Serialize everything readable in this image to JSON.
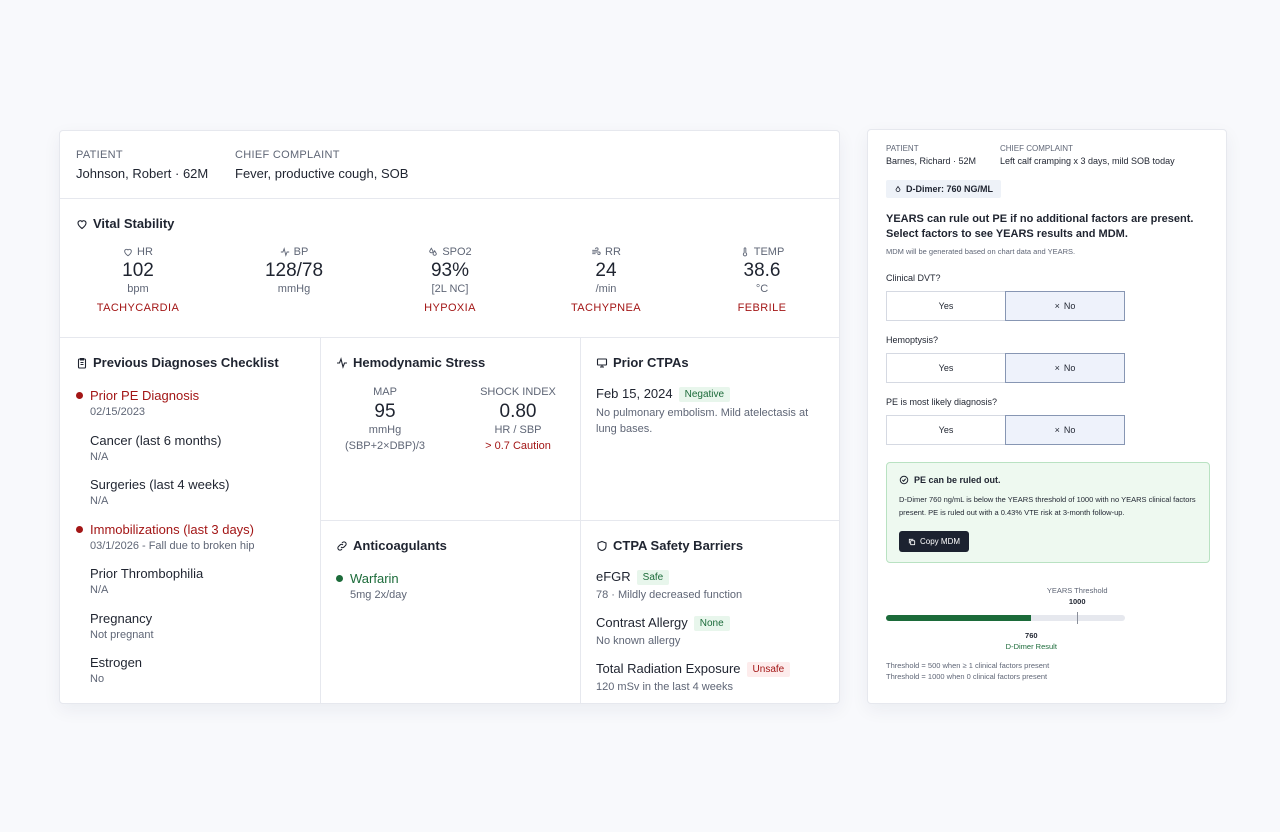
{
  "left": {
    "header": {
      "patient_label": "PATIENT",
      "patient_value": "Johnson, Robert · 62M",
      "complaint_label": "CHIEF COMPLAINT",
      "complaint_value": "Fever, productive cough, SOB"
    },
    "vitals": {
      "title": "Vital Stability",
      "items": [
        {
          "label": "HR",
          "value": "102",
          "unit": "bpm",
          "status": "TACHYCARDIA",
          "icon": "heart-icon"
        },
        {
          "label": "BP",
          "value": "128/78",
          "unit": "mmHg",
          "status": "",
          "icon": "pulse-icon"
        },
        {
          "label": "SPO2",
          "value": "93%",
          "unit": "[2L NC]",
          "status": "HYPOXIA",
          "icon": "droplets-icon"
        },
        {
          "label": "RR",
          "value": "24",
          "unit": "/min",
          "status": "TACHYPNEA",
          "icon": "wind-icon"
        },
        {
          "label": "TEMP",
          "value": "38.6",
          "unit": "°C",
          "status": "FEBRILE",
          "icon": "thermometer-icon"
        }
      ]
    },
    "checklist": {
      "title": "Previous Diagnoses Checklist",
      "items": [
        {
          "title": "Prior PE Diagnosis",
          "sub": "02/15/2023",
          "flag": true
        },
        {
          "title": "Cancer (last 6 months)",
          "sub": "N/A",
          "flag": false
        },
        {
          "title": "Surgeries (last 4 weeks)",
          "sub": "N/A",
          "flag": false
        },
        {
          "title": "Immobilizations (last 3 days)",
          "sub": "03/1/2026 - Fall due to broken hip",
          "flag": true
        },
        {
          "title": "Prior Thrombophilia",
          "sub": "N/A",
          "flag": false
        },
        {
          "title": "Pregnancy",
          "sub": "Not pregnant",
          "flag": false
        },
        {
          "title": "Estrogen",
          "sub": "No",
          "flag": false
        }
      ]
    },
    "hemo": {
      "title": "Hemodynamic Stress",
      "map_label": "MAP",
      "map_value": "95",
      "map_unit": "mmHg",
      "map_formula": "(SBP+2×DBP)/3",
      "si_label": "SHOCK INDEX",
      "si_value": "0.80",
      "si_unit": "HR / SBP",
      "si_caution": "> 0.7 Caution"
    },
    "ctpa": {
      "title": "Prior CTPAs",
      "date": "Feb 15, 2024",
      "badge": "Negative",
      "text": "No pulmonary embolism. Mild atelectasis at lung bases."
    },
    "anticoag": {
      "title": "Anticoagulants",
      "drug": "Warfarin",
      "dose": "5mg 2x/day"
    },
    "barriers": {
      "title": "CTPA Safety Barriers",
      "items": [
        {
          "title": "eFGR",
          "badge": "Safe",
          "sub": "78 · Mildly decreased function"
        },
        {
          "title": "Contrast Allergy",
          "badge": "None",
          "sub": "No known allergy"
        },
        {
          "title": "Total Radiation Exposure",
          "badge": "Unsafe",
          "sub": "120 mSv in the last 4 weeks"
        }
      ]
    }
  },
  "right": {
    "patient_label": "PATIENT",
    "patient_value": "Barnes, Richard · 52M",
    "complaint_label": "CHIEF COMPLAINT",
    "complaint_value": "Left calf cramping x 3 days, mild SOB today",
    "ddimer_chip": "D-Dimer: 760 NG/ML",
    "headline": "YEARS can rule out PE if no additional factors are present. Select factors to see YEARS results and MDM.",
    "subnote": "MDM will be generated based on chart data and YEARS.",
    "questions": [
      {
        "label": "Clinical DVT?",
        "yes": "Yes",
        "no": "No",
        "selected": "No"
      },
      {
        "label": "Hemoptysis?",
        "yes": "Yes",
        "no": "No",
        "selected": "No"
      },
      {
        "label": "PE is most likely diagnosis?",
        "yes": "Yes",
        "no": "No",
        "selected": "No"
      }
    ],
    "result": {
      "title": "PE can be ruled out.",
      "text": "D-Dimer 760 ng/mL is below the YEARS threshold of 1000 with no YEARS clinical factors present. PE is ruled out with a 0.43% VTE risk at 3-month follow-up.",
      "button": "Copy MDM"
    },
    "gauge": {
      "threshold_label": "YEARS Threshold",
      "threshold_value": "1000",
      "result_value": "760",
      "result_label": "D-Dimer Result",
      "value": 760,
      "max": 1250,
      "threshold": 1000
    },
    "footnote1": "Threshold = 500 when ≥ 1 clinical factors present",
    "footnote2": "Threshold = 1000 when 0 clinical factors present"
  },
  "colors": {
    "alert": "#a31616",
    "safe": "#1c6b3a",
    "accent": "#1c6b3a"
  }
}
